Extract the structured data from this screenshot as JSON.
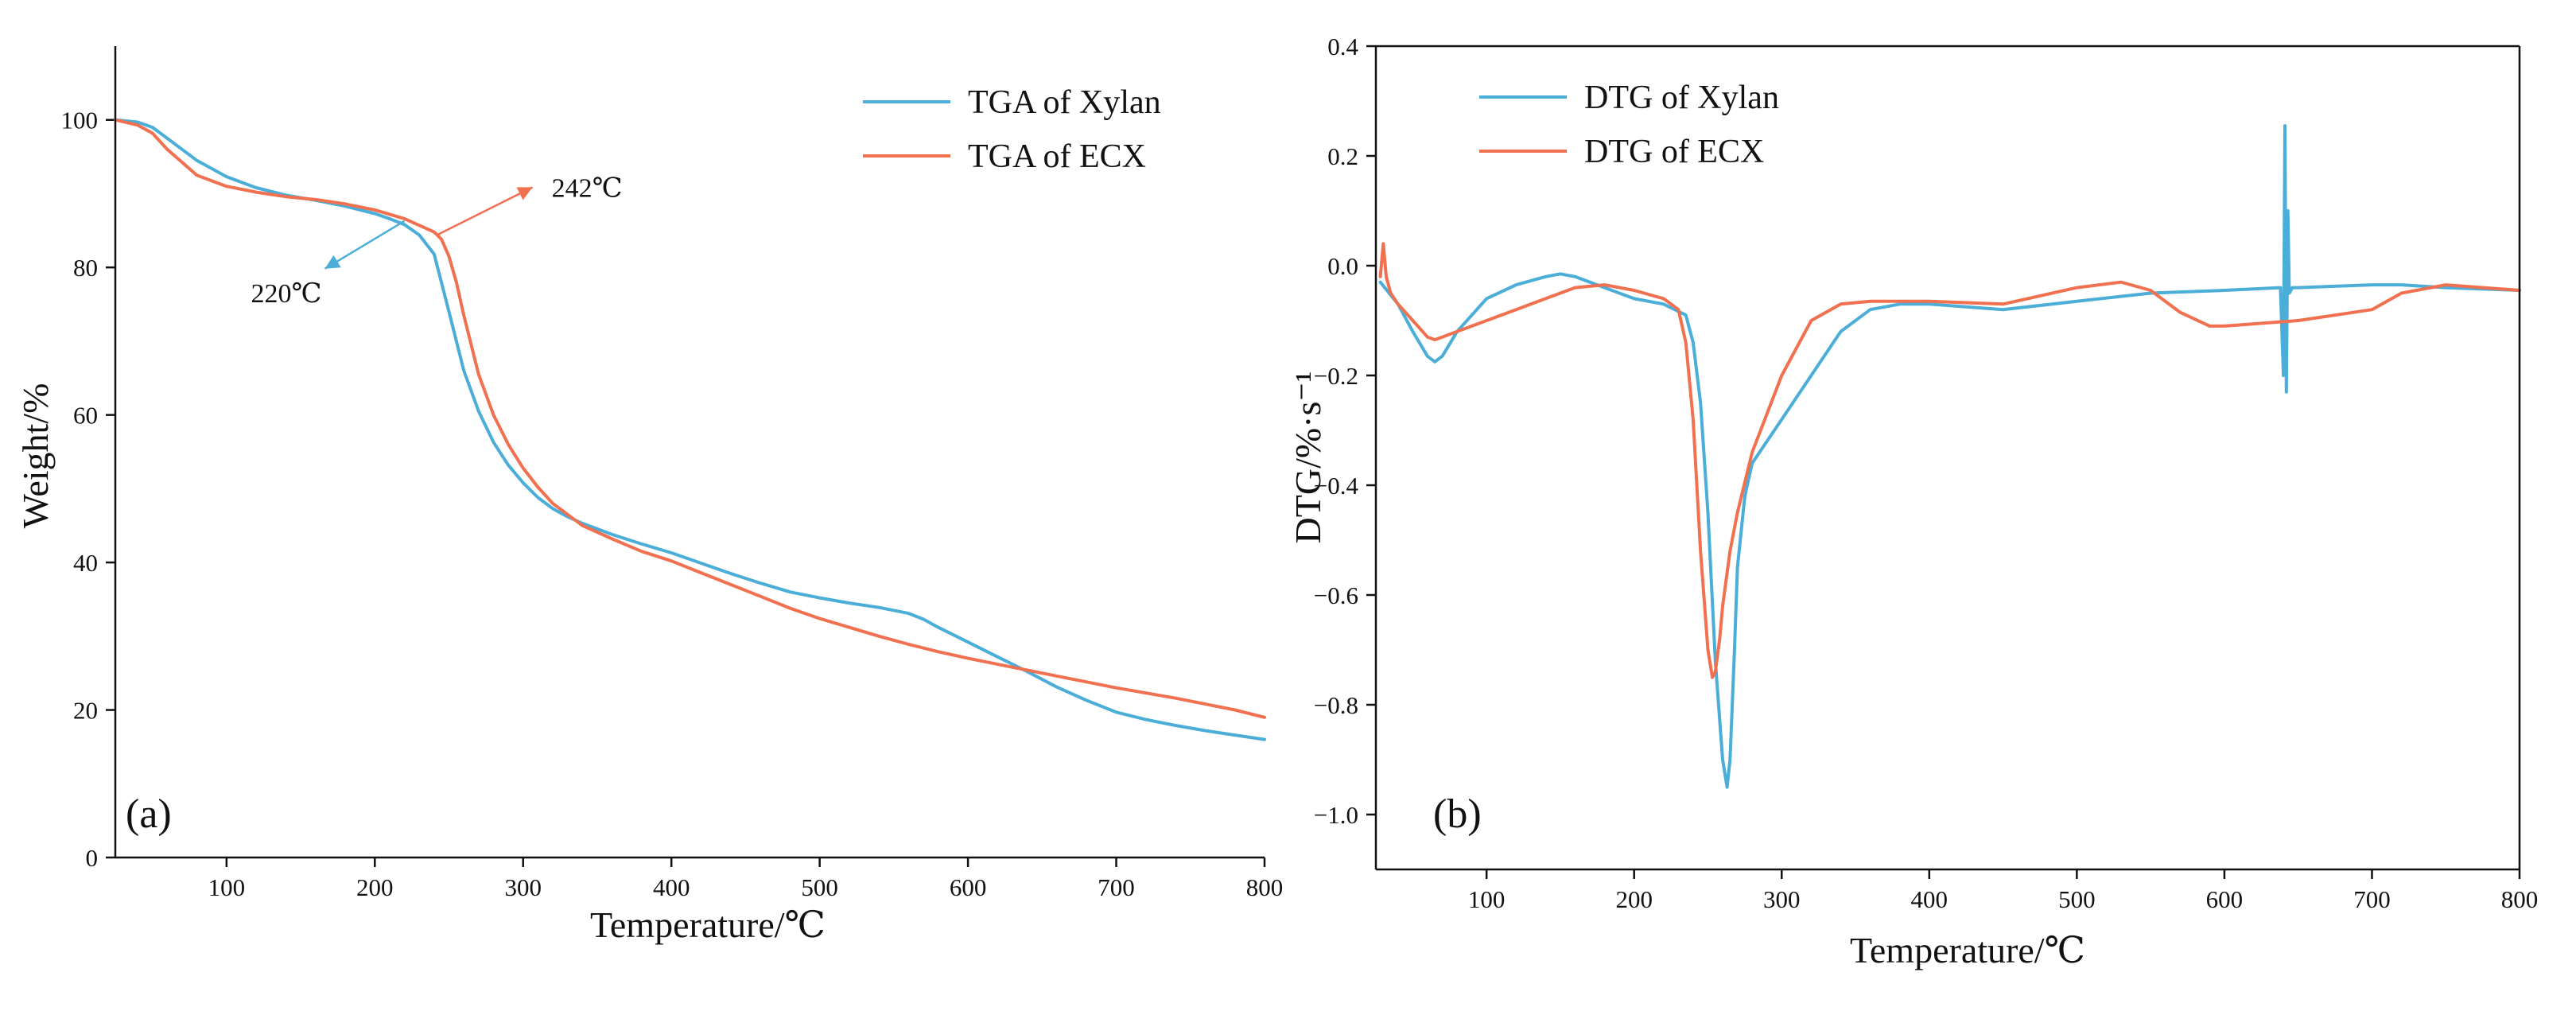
{
  "figure": {
    "background": "#ffffff"
  },
  "colors": {
    "xylan": "#4aaed8",
    "ecx": "#f0704f",
    "axis": "#111111"
  },
  "chart_data": [
    {
      "type": "line",
      "panel_label": "(a)",
      "title": "",
      "xlabel": "Temperature/℃",
      "ylabel": "Weight/%",
      "xlim": [
        25,
        800
      ],
      "ylim": [
        0,
        110
      ],
      "xticks": [
        100,
        200,
        300,
        400,
        500,
        600,
        700,
        800
      ],
      "yticks": [
        0,
        20,
        40,
        60,
        80,
        100
      ],
      "grid": false,
      "legend_position": "top-right",
      "series": [
        {
          "name": "TGA of Xylan",
          "color": "#4aaed8",
          "x": [
            25,
            40,
            50,
            60,
            80,
            100,
            120,
            140,
            160,
            180,
            200,
            210,
            220,
            230,
            240,
            250,
            260,
            270,
            280,
            290,
            300,
            310,
            320,
            330,
            340,
            360,
            380,
            400,
            420,
            440,
            460,
            480,
            500,
            520,
            540,
            560,
            570,
            580,
            600,
            620,
            640,
            660,
            680,
            700,
            720,
            740,
            760,
            780,
            800
          ],
          "y": [
            100,
            99.7,
            99,
            97.5,
            94.5,
            92.3,
            90.8,
            89.8,
            89.1,
            88.3,
            87.3,
            86.6,
            85.8,
            84.4,
            81.8,
            74,
            66,
            60.5,
            56.3,
            53.2,
            50.8,
            48.8,
            47.3,
            46.2,
            45.3,
            43.8,
            42.5,
            41.3,
            39.9,
            38.5,
            37.2,
            36,
            35.2,
            34.5,
            33.9,
            33.1,
            32.3,
            31.2,
            29.2,
            27.2,
            25.2,
            23.1,
            21.3,
            19.7,
            18.7,
            17.9,
            17.2,
            16.6,
            16
          ]
        },
        {
          "name": "TGA of ECX",
          "color": "#f0704f",
          "x": [
            25,
            40,
            50,
            60,
            80,
            100,
            120,
            140,
            160,
            180,
            200,
            220,
            230,
            240,
            245,
            250,
            255,
            260,
            270,
            280,
            290,
            300,
            310,
            320,
            330,
            340,
            360,
            380,
            400,
            420,
            440,
            460,
            480,
            500,
            520,
            540,
            560,
            580,
            600,
            620,
            640,
            660,
            680,
            700,
            720,
            740,
            760,
            780,
            800
          ],
          "y": [
            100,
            99.3,
            98.2,
            96,
            92.5,
            91,
            90.2,
            89.6,
            89.2,
            88.6,
            87.8,
            86.6,
            85.7,
            84.8,
            83.8,
            81.5,
            78,
            73.5,
            65.5,
            60,
            56,
            52.8,
            50.2,
            48,
            46.5,
            45,
            43.2,
            41.5,
            40.2,
            38.6,
            37,
            35.4,
            33.8,
            32.4,
            31.2,
            30,
            28.9,
            27.9,
            27,
            26.2,
            25.4,
            24.6,
            23.8,
            23,
            22.3,
            21.6,
            20.8,
            20,
            19
          ]
        }
      ],
      "annotations": [
        {
          "text": "220℃",
          "series": "TGA of Xylan",
          "x": 220,
          "y": 86.3,
          "color": "#4aaed8"
        },
        {
          "text": "242℃",
          "series": "TGA of ECX",
          "x": 242,
          "y": 84.4,
          "color": "#f0704f"
        }
      ]
    },
    {
      "type": "line",
      "panel_label": "(b)",
      "title": "",
      "xlabel": "Temperature/℃",
      "ylabel": "DTG/%·s⁻¹",
      "xlim": [
        25,
        800
      ],
      "ylim": [
        -1.1,
        0.4
      ],
      "xticks": [
        100,
        200,
        300,
        400,
        500,
        600,
        700,
        800
      ],
      "yticks": [
        0.4,
        0.2,
        0.0,
        -0.2,
        -0.4,
        -0.6,
        -0.8,
        -1.0
      ],
      "ytick_labels": [
        "0.4",
        "0.2",
        "0.0",
        "−0.2",
        "−0.4",
        "−0.6",
        "−0.8",
        "−1.0"
      ],
      "grid": false,
      "legend_position": "top-left",
      "series": [
        {
          "name": "DTG of Xylan",
          "color": "#4aaed8",
          "x": [
            28,
            40,
            50,
            60,
            65,
            70,
            80,
            100,
            120,
            140,
            150,
            160,
            180,
            200,
            220,
            235,
            240,
            245,
            250,
            255,
            260,
            263,
            265,
            268,
            270,
            275,
            280,
            290,
            300,
            320,
            340,
            360,
            380,
            400,
            450,
            500,
            550,
            600,
            638,
            640,
            641,
            642,
            643,
            644,
            646,
            650,
            700,
            720,
            750,
            800
          ],
          "y": [
            -0.03,
            -0.07,
            -0.12,
            -0.165,
            -0.175,
            -0.165,
            -0.12,
            -0.06,
            -0.035,
            -0.02,
            -0.015,
            -0.02,
            -0.04,
            -0.06,
            -0.07,
            -0.09,
            -0.14,
            -0.25,
            -0.45,
            -0.72,
            -0.9,
            -0.95,
            -0.9,
            -0.7,
            -0.55,
            -0.42,
            -0.36,
            -0.32,
            -0.28,
            -0.2,
            -0.12,
            -0.08,
            -0.07,
            -0.07,
            -0.08,
            -0.065,
            -0.05,
            -0.045,
            -0.04,
            -0.2,
            0.255,
            -0.23,
            0.1,
            -0.05,
            -0.04,
            -0.04,
            -0.035,
            -0.035,
            -0.04,
            -0.045
          ]
        },
        {
          "name": "DTG of ECX",
          "color": "#f0704f",
          "x": [
            28,
            30,
            32,
            35,
            40,
            50,
            60,
            65,
            70,
            80,
            100,
            120,
            140,
            160,
            180,
            200,
            220,
            230,
            235,
            240,
            245,
            250,
            253,
            255,
            258,
            260,
            265,
            270,
            280,
            300,
            320,
            340,
            360,
            380,
            400,
            450,
            500,
            530,
            550,
            570,
            590,
            600,
            650,
            700,
            720,
            750,
            800
          ],
          "y": [
            -0.02,
            0.04,
            -0.02,
            -0.05,
            -0.07,
            -0.1,
            -0.13,
            -0.135,
            -0.13,
            -0.12,
            -0.1,
            -0.08,
            -0.06,
            -0.04,
            -0.035,
            -0.045,
            -0.06,
            -0.08,
            -0.14,
            -0.28,
            -0.52,
            -0.7,
            -0.75,
            -0.74,
            -0.68,
            -0.62,
            -0.52,
            -0.45,
            -0.34,
            -0.2,
            -0.1,
            -0.07,
            -0.065,
            -0.065,
            -0.065,
            -0.07,
            -0.04,
            -0.03,
            -0.045,
            -0.085,
            -0.11,
            -0.11,
            -0.1,
            -0.08,
            -0.05,
            -0.035,
            -0.045
          ]
        }
      ]
    }
  ]
}
